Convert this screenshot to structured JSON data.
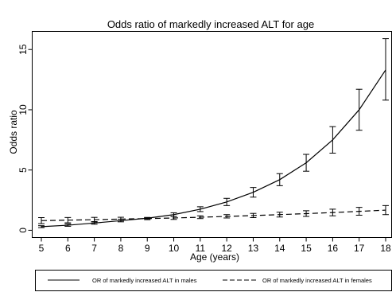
{
  "chart_data": {
    "type": "line",
    "title": "Odds ratio of markedly increased ALT for age",
    "xlabel": "Age (years)",
    "ylabel": "Odds ratio",
    "xlim": [
      5,
      18
    ],
    "ylim": [
      -0.6,
      16.5
    ],
    "xticks": [
      5,
      6,
      7,
      8,
      9,
      10,
      11,
      12,
      13,
      14,
      15,
      16,
      17,
      18
    ],
    "yticks": [
      0,
      5,
      10,
      15
    ],
    "grid": false,
    "legend_position": "bottom",
    "x": [
      5,
      6,
      7,
      8,
      9,
      10,
      11,
      12,
      13,
      14,
      15,
      16,
      17,
      18
    ],
    "series": [
      {
        "name": "OR of markedly increased ALT in males",
        "line_style": "solid",
        "values": [
          0.3,
          0.42,
          0.6,
          0.8,
          1.0,
          1.3,
          1.75,
          2.35,
          3.15,
          4.2,
          5.6,
          7.5,
          10.0,
          13.3
        ],
        "lower": [
          0.22,
          0.33,
          0.5,
          0.7,
          0.95,
          1.15,
          1.55,
          2.05,
          2.75,
          3.7,
          4.9,
          6.4,
          8.3,
          10.8
        ],
        "upper": [
          0.38,
          0.52,
          0.72,
          0.92,
          1.06,
          1.45,
          1.95,
          2.65,
          3.55,
          4.7,
          6.3,
          8.6,
          11.7,
          15.9
        ]
      },
      {
        "name": "OR of markedly increased ALT in females",
        "line_style": "dashed",
        "values": [
          0.8,
          0.84,
          0.88,
          0.93,
          0.97,
          1.02,
          1.08,
          1.15,
          1.22,
          1.3,
          1.38,
          1.47,
          1.57,
          1.67
        ],
        "lower": [
          0.55,
          0.62,
          0.69,
          0.78,
          0.88,
          0.9,
          0.97,
          1.02,
          1.05,
          1.1,
          1.15,
          1.2,
          1.25,
          1.3
        ],
        "upper": [
          1.05,
          1.06,
          1.07,
          1.08,
          1.06,
          1.14,
          1.2,
          1.3,
          1.4,
          1.5,
          1.62,
          1.75,
          1.9,
          2.05
        ]
      }
    ]
  }
}
